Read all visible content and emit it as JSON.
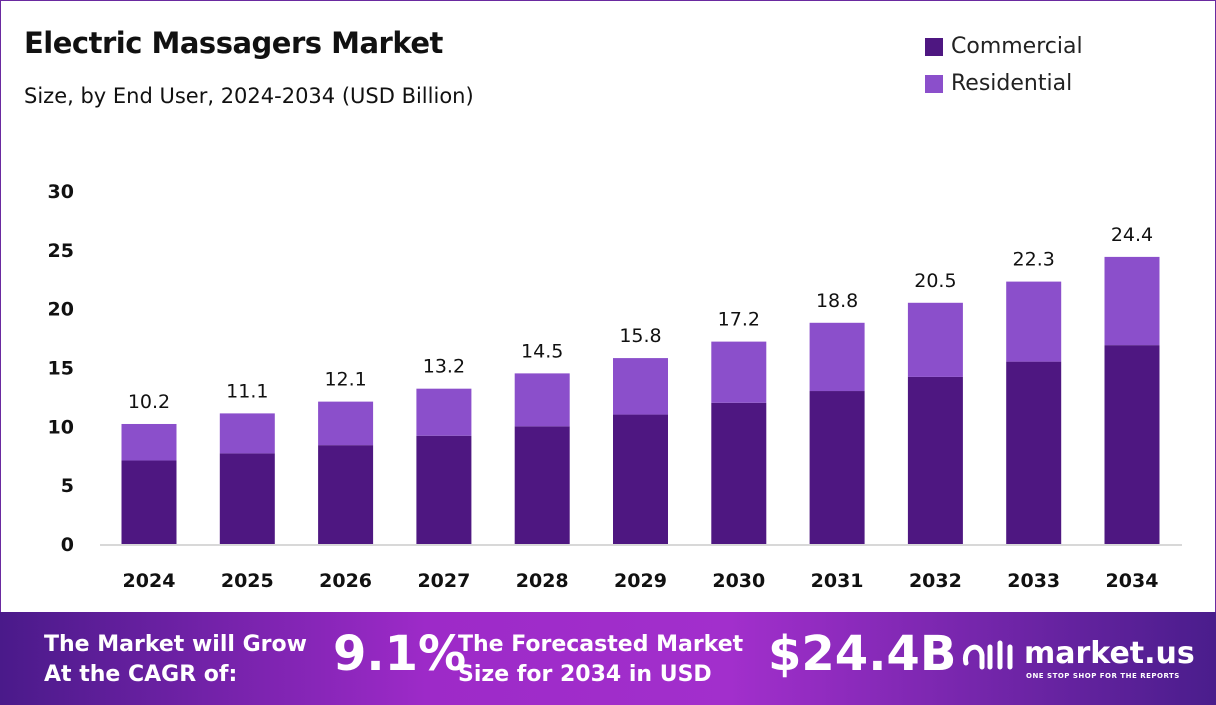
{
  "chart_data": {
    "type": "bar",
    "stacked": true,
    "title": "Electric Massagers Market",
    "subtitle": "Size, by End User, 2024-2034 (USD Billion)",
    "categories": [
      "2024",
      "2025",
      "2026",
      "2027",
      "2028",
      "2029",
      "2030",
      "2031",
      "2032",
      "2033",
      "2034"
    ],
    "series": [
      {
        "name": "Commercial",
        "color": "#4e1781",
        "values": [
          7.1,
          7.7,
          8.4,
          9.2,
          10.0,
          11.0,
          12.0,
          13.0,
          14.2,
          15.5,
          16.9
        ]
      },
      {
        "name": "Residential",
        "color": "#8b4fcb",
        "values": [
          3.1,
          3.4,
          3.7,
          4.0,
          4.5,
          4.8,
          5.2,
          5.8,
          6.3,
          6.8,
          7.5
        ]
      }
    ],
    "totals": [
      "10.2",
      "11.1",
      "12.1",
      "13.2",
      "14.5",
      "15.8",
      "17.2",
      "18.8",
      "20.5",
      "22.3",
      "24.4"
    ],
    "yticks": [
      "0",
      "5",
      "10",
      "15",
      "20",
      "25",
      "30"
    ],
    "ylim": [
      0,
      30
    ],
    "grid": false,
    "legend": "top-right"
  },
  "footer": {
    "cagr_label_1": "The Market will Grow",
    "cagr_label_2": "At the CAGR of:",
    "cagr_value": "9.1%",
    "forecast_label_1": "The Forecasted Market",
    "forecast_label_2": "Size for 2034 in USD",
    "forecast_value": "$24.4B",
    "brand": "market.us",
    "brand_tagline": "ONE STOP SHOP FOR THE REPORTS"
  }
}
